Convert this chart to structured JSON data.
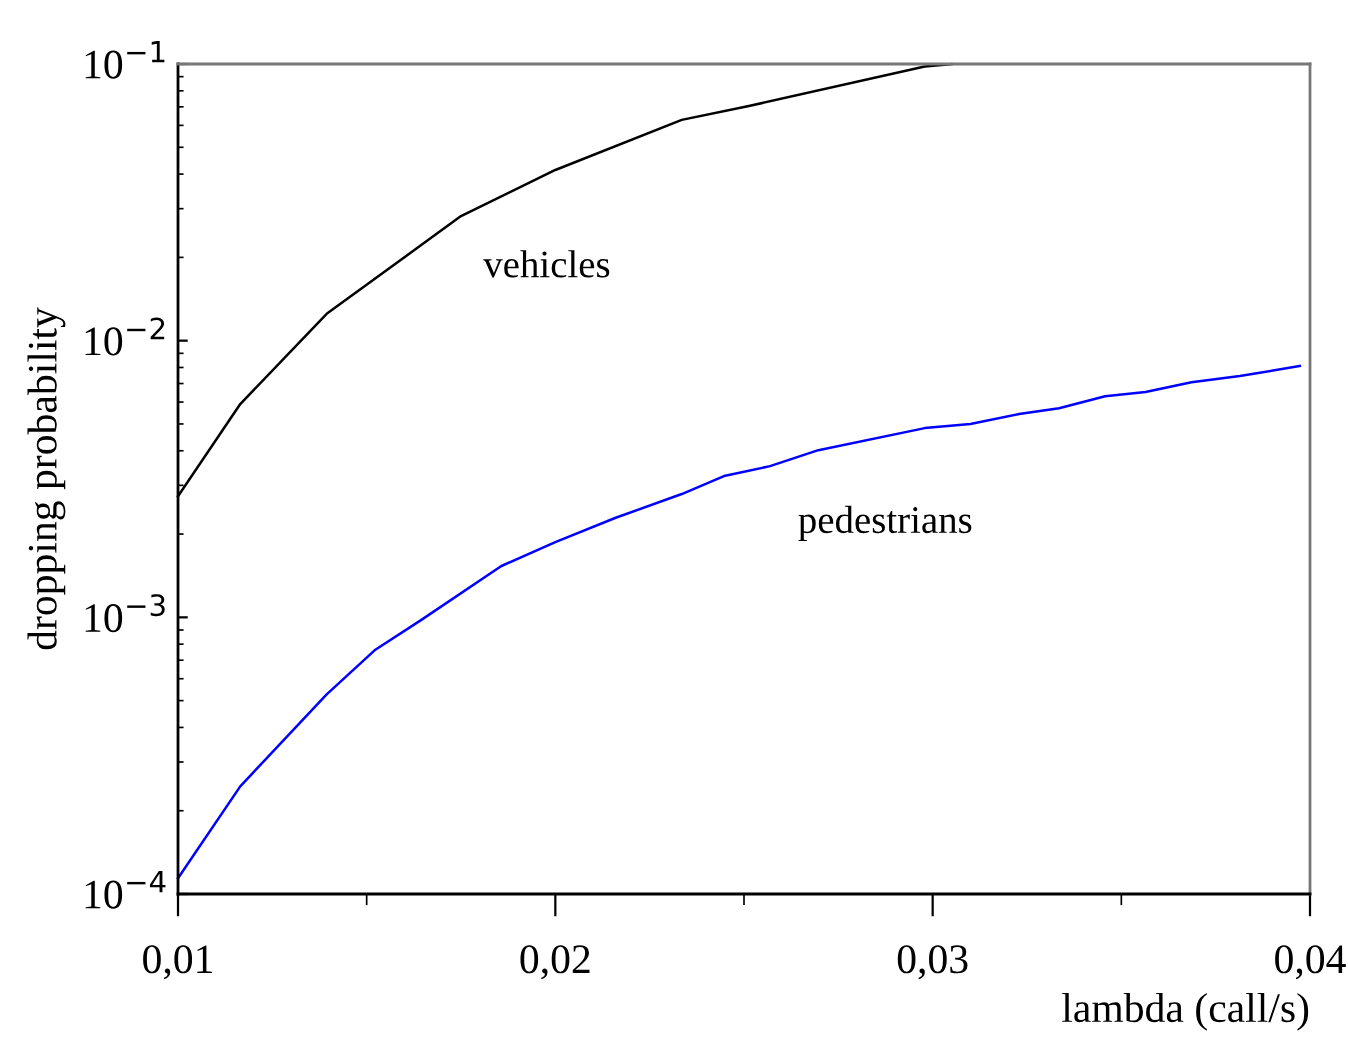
{
  "chart_data": {
    "type": "line",
    "xlabel": "lambda (call/s)",
    "ylabel": "dropping probability",
    "log": "y",
    "xlim": [
      0.01,
      0.04
    ],
    "xticks": [
      {
        "value": 0.01,
        "label": "0,01"
      },
      {
        "value": 0.02,
        "label": "0,02"
      },
      {
        "value": 0.03,
        "label": "0,03"
      },
      {
        "value": 0.04,
        "label": "0,04"
      }
    ],
    "ylim": [
      0.0001,
      0.1
    ],
    "yticks": [
      {
        "value": 0.0001,
        "label": "10$^{−4}$"
      },
      {
        "value": 0.001,
        "label": "10$^{−3}$"
      },
      {
        "value": 0.01,
        "label": "10$^{−2}$"
      },
      {
        "value": 0.1,
        "label": "10$^{−1}$"
      }
    ],
    "grid": false,
    "legend": false,
    "marker": "none",
    "line_style": "solid",
    "series": [
      {
        "name": "vehicles",
        "color": "#000000",
        "x": [
          0.01,
          0.01165,
          0.01394,
          0.0175,
          0.02,
          0.02335,
          0.02513,
          0.02979,
          0.0305
        ],
        "values": [
          0.00274,
          0.0059,
          0.0125,
          0.0282,
          0.0414,
          0.0628,
          0.0705,
          0.098,
          0.1
        ]
      },
      {
        "name": "pedestrians",
        "color": "#0000ff",
        "x": [
          0.01,
          0.01165,
          0.01394,
          0.01521,
          0.01644,
          0.01856,
          0.02,
          0.0216,
          0.02335,
          0.02447,
          0.02569,
          0.02697,
          0.02979,
          0.031,
          0.03229,
          0.03335,
          0.03457,
          0.03564,
          0.03686,
          0.03814,
          0.03973
        ],
        "values": [
          0.000114,
          0.000245,
          0.000527,
          0.00076,
          0.000977,
          0.00153,
          0.00187,
          0.00229,
          0.00279,
          0.00324,
          0.00352,
          0.00402,
          0.00483,
          0.005,
          0.00543,
          0.0057,
          0.0063,
          0.00652,
          0.00708,
          0.00745,
          0.0081
        ]
      }
    ]
  }
}
